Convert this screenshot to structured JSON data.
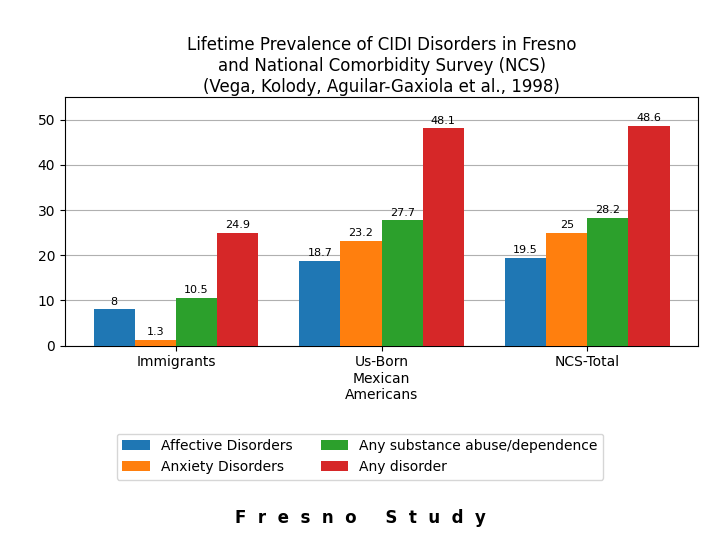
{
  "chart_data": {
    "type": "bar",
    "title": "Lifetime Prevalence of CIDI Disorders in Fresno\nand National Comorbidity Survey (NCS)\n(Vega, Kolody, Aguilar-Gaxiola et al., 1998)",
    "categories": [
      "Immigrants",
      "Us-Born\nMexican\nAmericans",
      "NCS-Total"
    ],
    "series": [
      {
        "name": "Affective Disorders",
        "values": [
          8,
          18.7,
          19.5
        ]
      },
      {
        "name": "Anxiety Disorders",
        "values": [
          1.3,
          23.2,
          25
        ]
      },
      {
        "name": "Any substance abuse/dependence",
        "values": [
          10.5,
          27.7,
          28.2
        ]
      },
      {
        "name": "Any disorder",
        "values": [
          24.9,
          48.1,
          48.6
        ]
      }
    ],
    "ylim": [
      0,
      55
    ],
    "yticks": [
      0,
      10,
      20,
      30,
      40,
      50
    ],
    "grid": true,
    "data_labels": true,
    "legend": "upper center",
    "annotations": [
      "F  r  e  s  n  o     S  t  u  d  y"
    ]
  }
}
